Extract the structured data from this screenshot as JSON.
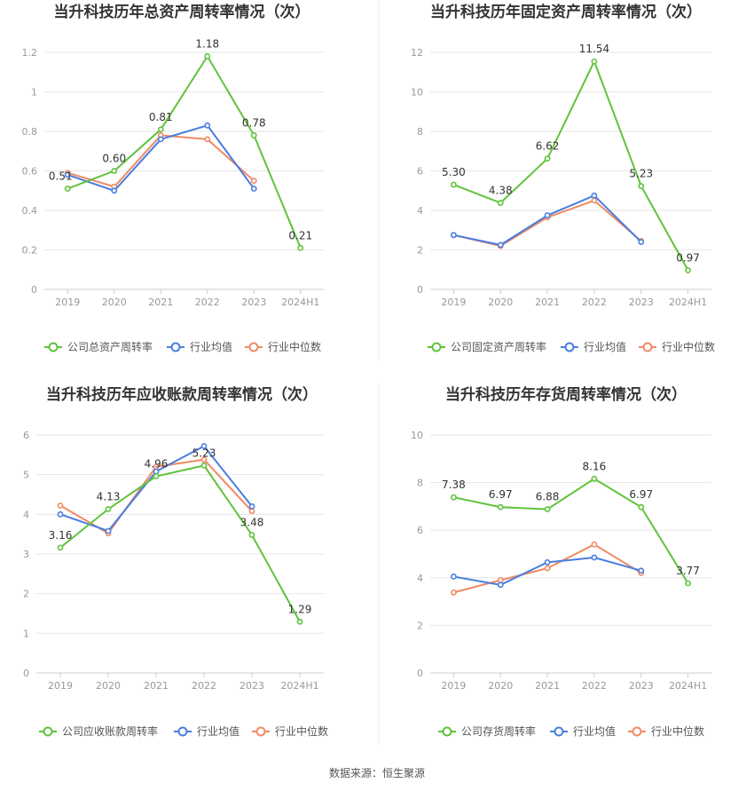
{
  "colors": {
    "company": "#5fc33a",
    "industry_avg": "#4a7de0",
    "industry_median": "#f08a64"
  },
  "source_text": "数据来源：恒生聚源",
  "chart_data": [
    {
      "type": "line",
      "title": "当升科技历年总资产周转率情况（次）",
      "categories": [
        "2019",
        "2020",
        "2021",
        "2022",
        "2023",
        "2024H1"
      ],
      "yticks": [
        "0",
        "0.2",
        "0.4",
        "0.6",
        "0.8",
        "1",
        "1.2"
      ],
      "ylim": [
        0,
        1.2
      ],
      "series": [
        {
          "name": "公司总资产周转率",
          "values": [
            0.51,
            0.6,
            0.81,
            1.18,
            0.78,
            0.21
          ],
          "labels": [
            "0.51",
            "0.60",
            "0.81",
            "1.18",
            "0.78",
            "0.21"
          ]
        },
        {
          "name": "行业均值",
          "values": [
            0.58,
            0.5,
            0.76,
            0.83,
            0.51,
            null
          ]
        },
        {
          "name": "行业中位数",
          "values": [
            0.59,
            0.52,
            0.78,
            0.76,
            0.55,
            null
          ]
        }
      ]
    },
    {
      "type": "line",
      "title": "当升科技历年固定资产周转率情况（次）",
      "categories": [
        "2019",
        "2020",
        "2021",
        "2022",
        "2023",
        "2024H1"
      ],
      "yticks": [
        "0",
        "2",
        "4",
        "6",
        "8",
        "10",
        "12"
      ],
      "ylim": [
        0,
        12
      ],
      "series": [
        {
          "name": "公司固定资产周转率",
          "values": [
            5.3,
            4.38,
            6.62,
            11.54,
            5.23,
            0.97
          ],
          "labels": [
            "5.30",
            "4.38",
            "6.62",
            "11.54",
            "5.23",
            "0.97"
          ]
        },
        {
          "name": "行业均值",
          "values": [
            2.75,
            2.25,
            3.75,
            4.75,
            2.4,
            null
          ]
        },
        {
          "name": "行业中位数",
          "values": [
            2.75,
            2.2,
            3.65,
            4.5,
            2.45,
            null
          ]
        }
      ]
    },
    {
      "type": "line",
      "title": "当升科技历年应收账款周转率情况（次）",
      "categories": [
        "2019",
        "2020",
        "2021",
        "2022",
        "2023",
        "2024H1"
      ],
      "yticks": [
        "0",
        "1",
        "2",
        "3",
        "4",
        "5",
        "6"
      ],
      "ylim": [
        0,
        6
      ],
      "series": [
        {
          "name": "公司应收账款周转率",
          "values": [
            3.16,
            4.13,
            4.96,
            5.23,
            3.48,
            1.29
          ],
          "labels": [
            "3.16",
            "4.13",
            "4.96",
            "5.23",
            "3.48",
            "1.29"
          ]
        },
        {
          "name": "行业均值",
          "values": [
            4.0,
            3.58,
            5.08,
            5.72,
            4.2,
            null
          ]
        },
        {
          "name": "行业中位数",
          "values": [
            4.22,
            3.52,
            5.2,
            5.38,
            4.08,
            null
          ]
        }
      ]
    },
    {
      "type": "line",
      "title": "当升科技历年存货周转率情况（次）",
      "categories": [
        "2019",
        "2020",
        "2021",
        "2022",
        "2023",
        "2024H1"
      ],
      "yticks": [
        "0",
        "2",
        "4",
        "6",
        "8",
        "10"
      ],
      "ylim": [
        0,
        10
      ],
      "series": [
        {
          "name": "公司存货周转率",
          "values": [
            7.38,
            6.97,
            6.88,
            8.16,
            6.97,
            3.77
          ],
          "labels": [
            "7.38",
            "6.97",
            "6.88",
            "8.16",
            "6.97",
            "3.77"
          ]
        },
        {
          "name": "行业均值",
          "values": [
            4.05,
            3.7,
            4.65,
            4.85,
            4.3,
            null
          ]
        },
        {
          "name": "行业中位数",
          "values": [
            3.38,
            3.9,
            4.4,
            5.4,
            4.2,
            null
          ]
        }
      ]
    }
  ]
}
